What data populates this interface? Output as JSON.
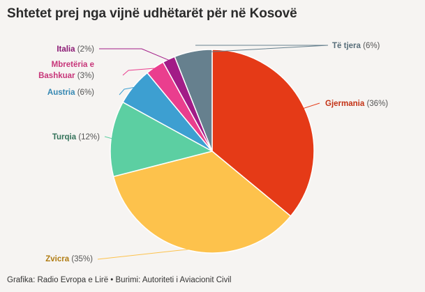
{
  "title": "Shtetet prej nga vijnë udhëtarët për në Kosovë",
  "footer": "Grafika: Radio Evropa e Lirë • Burimi: Autoriteti i Aviacionit Civil",
  "chart_data": {
    "type": "pie",
    "start": "12 o'clock",
    "direction": "clockwise",
    "slices": [
      {
        "name": "Gjermania",
        "pct_label": "(36%)",
        "value": 36,
        "color": "#e53a17"
      },
      {
        "name": "Zvicra",
        "pct_label": "(35%)",
        "value": 35,
        "color": "#fdc24c"
      },
      {
        "name": "Turqia",
        "pct_label": "(12%)",
        "value": 12,
        "color": "#5ccfa2"
      },
      {
        "name": "Austria",
        "pct_label": "(6%)",
        "value": 6,
        "color": "#3d9fd1"
      },
      {
        "name": "Mbretëria e Bashkuar",
        "name_lines": [
          "Mbretëria e",
          "Bashkuar"
        ],
        "pct_label": "(3%)",
        "value": 3,
        "color": "#ea3e8e"
      },
      {
        "name": "Italia",
        "pct_label": "(2%)",
        "value": 2,
        "color": "#a21c87"
      },
      {
        "name": "Të tjera",
        "pct_label": "(6%)",
        "value": 6,
        "color": "#66808e"
      }
    ]
  }
}
